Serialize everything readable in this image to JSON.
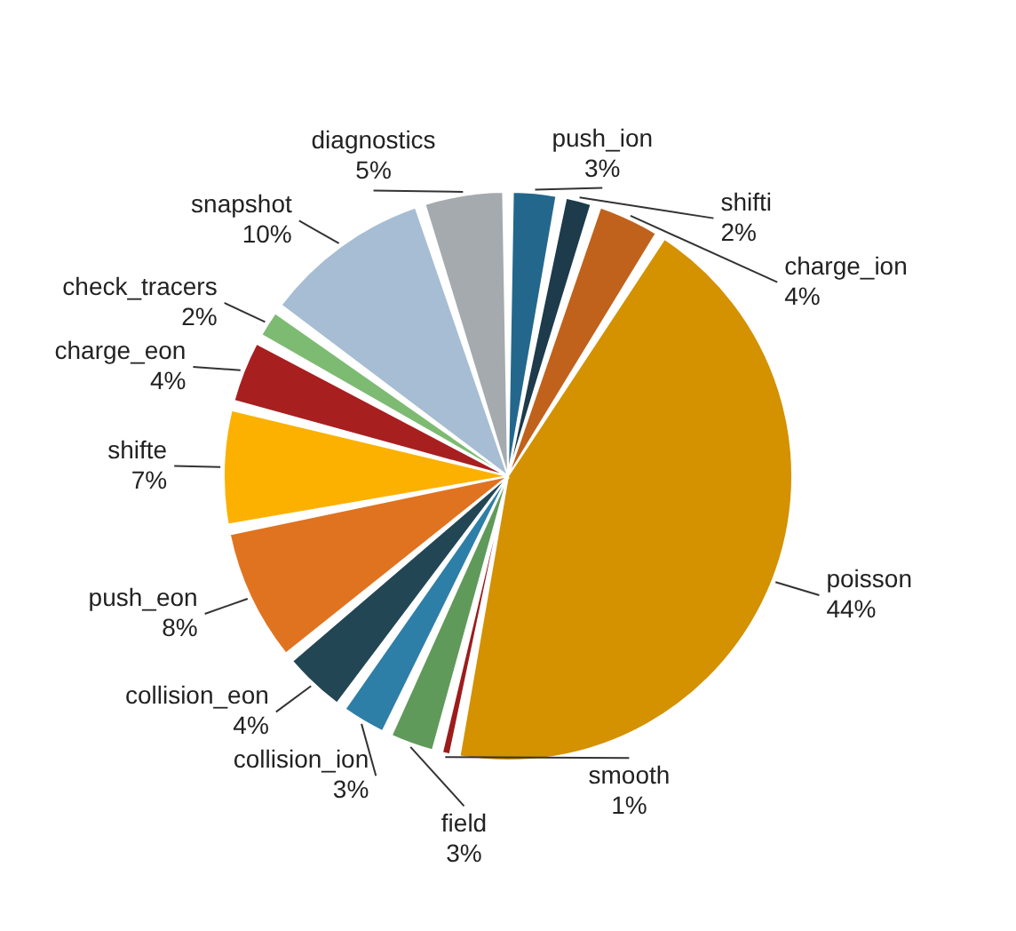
{
  "chart_data": {
    "type": "pie",
    "categories": [
      "push_ion",
      "shifti",
      "charge_ion",
      "poisson",
      "smooth",
      "field",
      "collision_ion",
      "collision_eon",
      "push_eon",
      "shifte",
      "charge_eon",
      "check_tracers",
      "snapshot",
      "diagnostics"
    ],
    "values": [
      3,
      2,
      4,
      44,
      1,
      3,
      3,
      4,
      8,
      7,
      4,
      2,
      10,
      5
    ],
    "value_labels": [
      "3%",
      "2%",
      "4%",
      "44%",
      "1%",
      "3%",
      "3%",
      "4%",
      "8%",
      "7%",
      "4%",
      "2%",
      "10%",
      "5%"
    ],
    "colors": [
      "#23688c",
      "#1d3b4a",
      "#c0621c",
      "#d49100",
      "#9c1c1c",
      "#5f9a5a",
      "#2e7fa8",
      "#234654",
      "#e07320",
      "#fcb100",
      "#a81f20",
      "#7dbb72",
      "#a6bdd3",
      "#a4aaae"
    ]
  }
}
